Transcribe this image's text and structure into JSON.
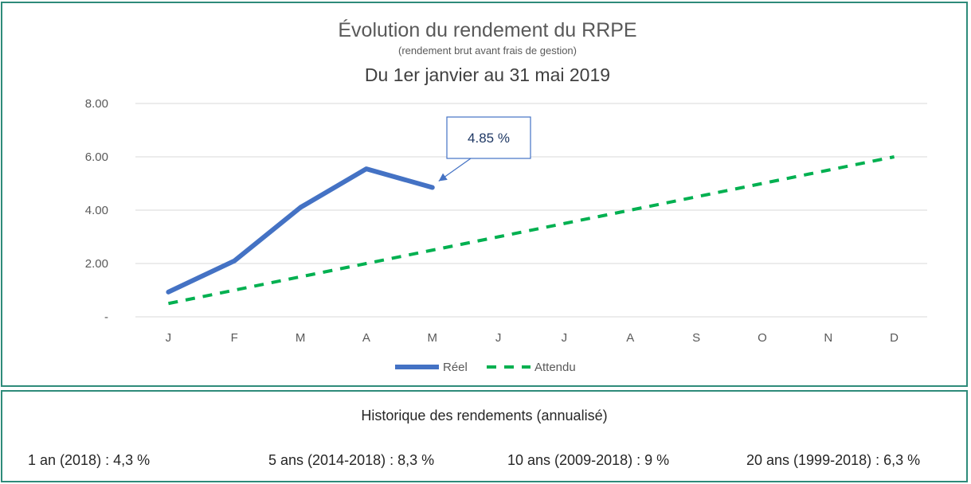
{
  "chart_data": {
    "type": "line",
    "title": "Évolution du rendement du RRPE",
    "subtitle": "(rendement brut avant frais de gestion)",
    "period": "Du 1er janvier au 31 mai 2019",
    "categories": [
      "J",
      "F",
      "M",
      "A",
      "M",
      "J",
      "J",
      "A",
      "S",
      "O",
      "N",
      "D"
    ],
    "ylim": [
      0,
      8
    ],
    "yticks": [
      0,
      2,
      4,
      6,
      8
    ],
    "ytick_labels": [
      "-",
      "2.00",
      "4.00",
      "6.00",
      "8.00"
    ],
    "grid": true,
    "legend_position": "bottom",
    "series": [
      {
        "name": "Réel",
        "style": "solid",
        "color": "#4472c4",
        "values": [
          0.93,
          2.1,
          4.1,
          5.55,
          4.85,
          null,
          null,
          null,
          null,
          null,
          null,
          null
        ]
      },
      {
        "name": "Attendu",
        "style": "dashed",
        "color": "#00b050",
        "values": [
          0.5,
          1.0,
          1.5,
          2.0,
          2.5,
          3.0,
          3.5,
          4.0,
          4.5,
          5.0,
          5.5,
          6.0
        ]
      }
    ],
    "annotation": {
      "text": "4.85 %",
      "category_index": 4,
      "value": 4.85
    }
  },
  "history": {
    "title": "Historique des rendements (annualisé)",
    "items": [
      "1 an (2018) : 4,3 %",
      "5 ans (2014-2018) : 8,3 %",
      "10 ans (2009-2018) : 9 %",
      "20 ans (1999-2018) : 6,3 %"
    ]
  }
}
